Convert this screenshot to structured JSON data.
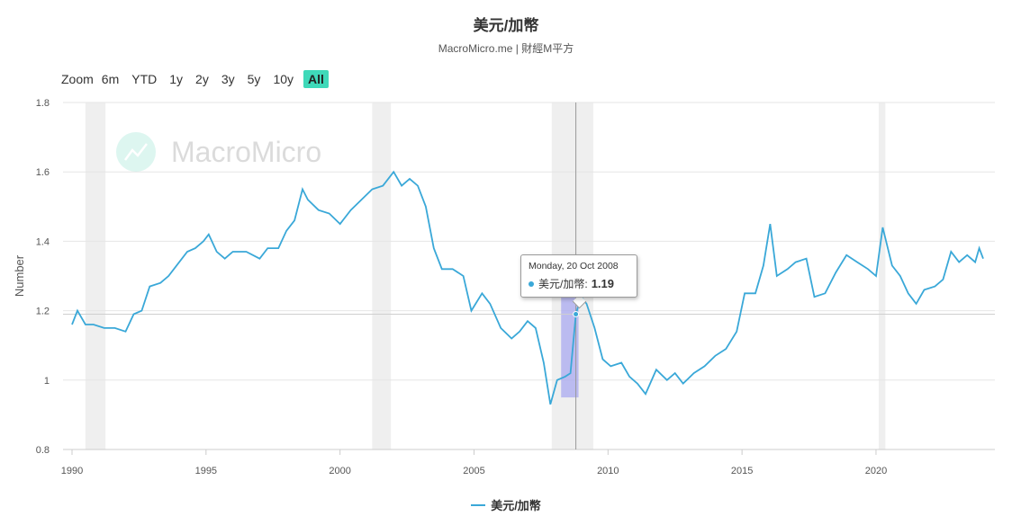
{
  "header": {
    "title": "美元/加幣",
    "subtitle": "MacroMicro.me | 財經M平方"
  },
  "range_selector": {
    "label": "Zoom",
    "buttons": [
      "6m",
      "YTD",
      "1y",
      "2y",
      "3y",
      "5y",
      "10y",
      "All"
    ],
    "active": "All"
  },
  "watermark": {
    "text": "MacroMicro",
    "icon": "macromicro-logo-icon"
  },
  "tooltip": {
    "date": "Monday, 20 Oct 2008",
    "series": "美元/加幣",
    "value": "1.19"
  },
  "legend": {
    "label": "美元/加幣",
    "color": "#3aa8d8"
  },
  "chart_data": {
    "type": "line",
    "title": "美元/加幣",
    "subtitle": "MacroMicro.me | 財經M平方",
    "ylabel": "Number",
    "xlabel": "",
    "xlim": [
      1990,
      2024.1
    ],
    "ylim": [
      0.8,
      1.8
    ],
    "x_ticks": [
      1990,
      1995,
      2000,
      2005,
      2010,
      2015,
      2020
    ],
    "y_ticks": [
      0.8,
      1,
      1.2,
      1.4,
      1.6,
      1.8
    ],
    "grid": true,
    "legend_position": "bottom",
    "recession_bands": [
      [
        1990.5,
        1991.25
      ],
      [
        2001.2,
        2001.9
      ],
      [
        2007.9,
        2009.45
      ],
      [
        2020.1,
        2020.35
      ]
    ],
    "selection_band": {
      "x": [
        2008.25,
        2008.9
      ],
      "y": [
        0.95,
        1.24
      ]
    },
    "crosshair_x": 2008.8,
    "series": [
      {
        "name": "美元/加幣",
        "color": "#3aa8d8",
        "points": [
          [
            1990.0,
            1.16
          ],
          [
            1990.2,
            1.2
          ],
          [
            1990.5,
            1.16
          ],
          [
            1990.8,
            1.16
          ],
          [
            1991.2,
            1.15
          ],
          [
            1991.6,
            1.15
          ],
          [
            1992.0,
            1.14
          ],
          [
            1992.3,
            1.19
          ],
          [
            1992.6,
            1.2
          ],
          [
            1992.9,
            1.27
          ],
          [
            1993.3,
            1.28
          ],
          [
            1993.6,
            1.3
          ],
          [
            1993.9,
            1.33
          ],
          [
            1994.3,
            1.37
          ],
          [
            1994.6,
            1.38
          ],
          [
            1994.9,
            1.4
          ],
          [
            1995.1,
            1.42
          ],
          [
            1995.4,
            1.37
          ],
          [
            1995.7,
            1.35
          ],
          [
            1996.0,
            1.37
          ],
          [
            1996.5,
            1.37
          ],
          [
            1997.0,
            1.35
          ],
          [
            1997.3,
            1.38
          ],
          [
            1997.7,
            1.38
          ],
          [
            1998.0,
            1.43
          ],
          [
            1998.3,
            1.46
          ],
          [
            1998.6,
            1.55
          ],
          [
            1998.8,
            1.52
          ],
          [
            1999.2,
            1.49
          ],
          [
            1999.6,
            1.48
          ],
          [
            2000.0,
            1.45
          ],
          [
            2000.4,
            1.49
          ],
          [
            2000.8,
            1.52
          ],
          [
            2001.2,
            1.55
          ],
          [
            2001.6,
            1.56
          ],
          [
            2002.0,
            1.6
          ],
          [
            2002.3,
            1.56
          ],
          [
            2002.6,
            1.58
          ],
          [
            2002.9,
            1.56
          ],
          [
            2003.2,
            1.5
          ],
          [
            2003.5,
            1.38
          ],
          [
            2003.8,
            1.32
          ],
          [
            2004.2,
            1.32
          ],
          [
            2004.6,
            1.3
          ],
          [
            2004.9,
            1.2
          ],
          [
            2005.3,
            1.25
          ],
          [
            2005.6,
            1.22
          ],
          [
            2006.0,
            1.15
          ],
          [
            2006.4,
            1.12
          ],
          [
            2006.7,
            1.14
          ],
          [
            2007.0,
            1.17
          ],
          [
            2007.3,
            1.15
          ],
          [
            2007.6,
            1.05
          ],
          [
            2007.85,
            0.93
          ],
          [
            2008.1,
            1.0
          ],
          [
            2008.4,
            1.01
          ],
          [
            2008.6,
            1.02
          ],
          [
            2008.8,
            1.19
          ],
          [
            2009.0,
            1.24
          ],
          [
            2009.2,
            1.22
          ],
          [
            2009.5,
            1.15
          ],
          [
            2009.8,
            1.06
          ],
          [
            2010.1,
            1.04
          ],
          [
            2010.5,
            1.05
          ],
          [
            2010.8,
            1.01
          ],
          [
            2011.1,
            0.99
          ],
          [
            2011.4,
            0.96
          ],
          [
            2011.8,
            1.03
          ],
          [
            2012.2,
            1.0
          ],
          [
            2012.5,
            1.02
          ],
          [
            2012.8,
            0.99
          ],
          [
            2013.2,
            1.02
          ],
          [
            2013.6,
            1.04
          ],
          [
            2014.0,
            1.07
          ],
          [
            2014.4,
            1.09
          ],
          [
            2014.8,
            1.14
          ],
          [
            2015.1,
            1.25
          ],
          [
            2015.5,
            1.25
          ],
          [
            2015.8,
            1.33
          ],
          [
            2016.05,
            1.45
          ],
          [
            2016.3,
            1.3
          ],
          [
            2016.7,
            1.32
          ],
          [
            2017.0,
            1.34
          ],
          [
            2017.4,
            1.35
          ],
          [
            2017.7,
            1.24
          ],
          [
            2018.1,
            1.25
          ],
          [
            2018.5,
            1.31
          ],
          [
            2018.9,
            1.36
          ],
          [
            2019.3,
            1.34
          ],
          [
            2019.7,
            1.32
          ],
          [
            2020.0,
            1.3
          ],
          [
            2020.25,
            1.44
          ],
          [
            2020.6,
            1.33
          ],
          [
            2020.9,
            1.3
          ],
          [
            2021.2,
            1.25
          ],
          [
            2021.5,
            1.22
          ],
          [
            2021.8,
            1.26
          ],
          [
            2022.2,
            1.27
          ],
          [
            2022.5,
            1.29
          ],
          [
            2022.8,
            1.37
          ],
          [
            2023.1,
            1.34
          ],
          [
            2023.4,
            1.36
          ],
          [
            2023.7,
            1.34
          ],
          [
            2023.85,
            1.38
          ],
          [
            2024.0,
            1.35
          ]
        ]
      }
    ]
  }
}
